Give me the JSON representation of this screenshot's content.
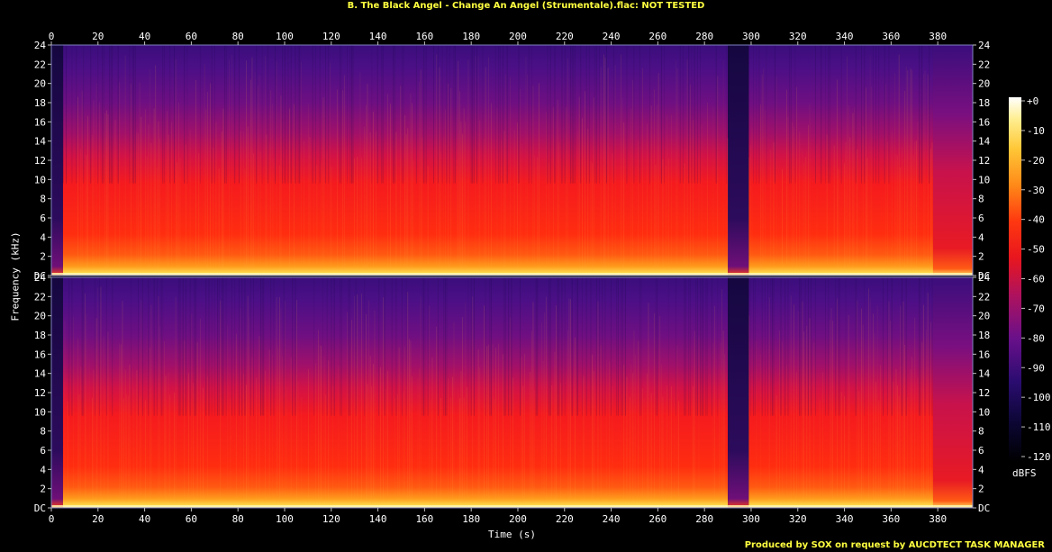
{
  "chart_data": {
    "type": "heatmap",
    "title": "B. The Black Angel - Change An Angel (Strumentale).flac: NOT TESTED",
    "xlabel": "Time (s)",
    "ylabel": "Frequency (kHz)",
    "xlim": [
      0,
      395
    ],
    "ylim": [
      0,
      24
    ],
    "x_ticks": [
      0,
      20,
      40,
      60,
      80,
      100,
      120,
      140,
      160,
      180,
      200,
      220,
      240,
      260,
      280,
      300,
      320,
      340,
      360,
      380
    ],
    "y_ticks": [
      "DC",
      "2",
      "4",
      "6",
      "8",
      "10",
      "12",
      "14",
      "16",
      "18",
      "20",
      "22",
      "24"
    ],
    "channels": 2,
    "colorbar": {
      "label": "dBFS",
      "range": [
        -120,
        0
      ],
      "ticks": [
        "+0",
        "-10",
        "-20",
        "-30",
        "-40",
        "-50",
        "-60",
        "-70",
        "-80",
        "-90",
        "-100",
        "-110",
        "-120"
      ]
    },
    "segments": [
      {
        "start": 0,
        "end": 5,
        "level": "quiet"
      },
      {
        "start": 5,
        "end": 290,
        "level": "loud"
      },
      {
        "start": 290,
        "end": 299,
        "level": "quiet"
      },
      {
        "start": 299,
        "end": 378,
        "level": "loud"
      },
      {
        "start": 378,
        "end": 395,
        "level": "fade"
      }
    ]
  },
  "footer": {
    "credit": "Produced by SOX on request by AUCDTECT TASK MANAGER"
  }
}
